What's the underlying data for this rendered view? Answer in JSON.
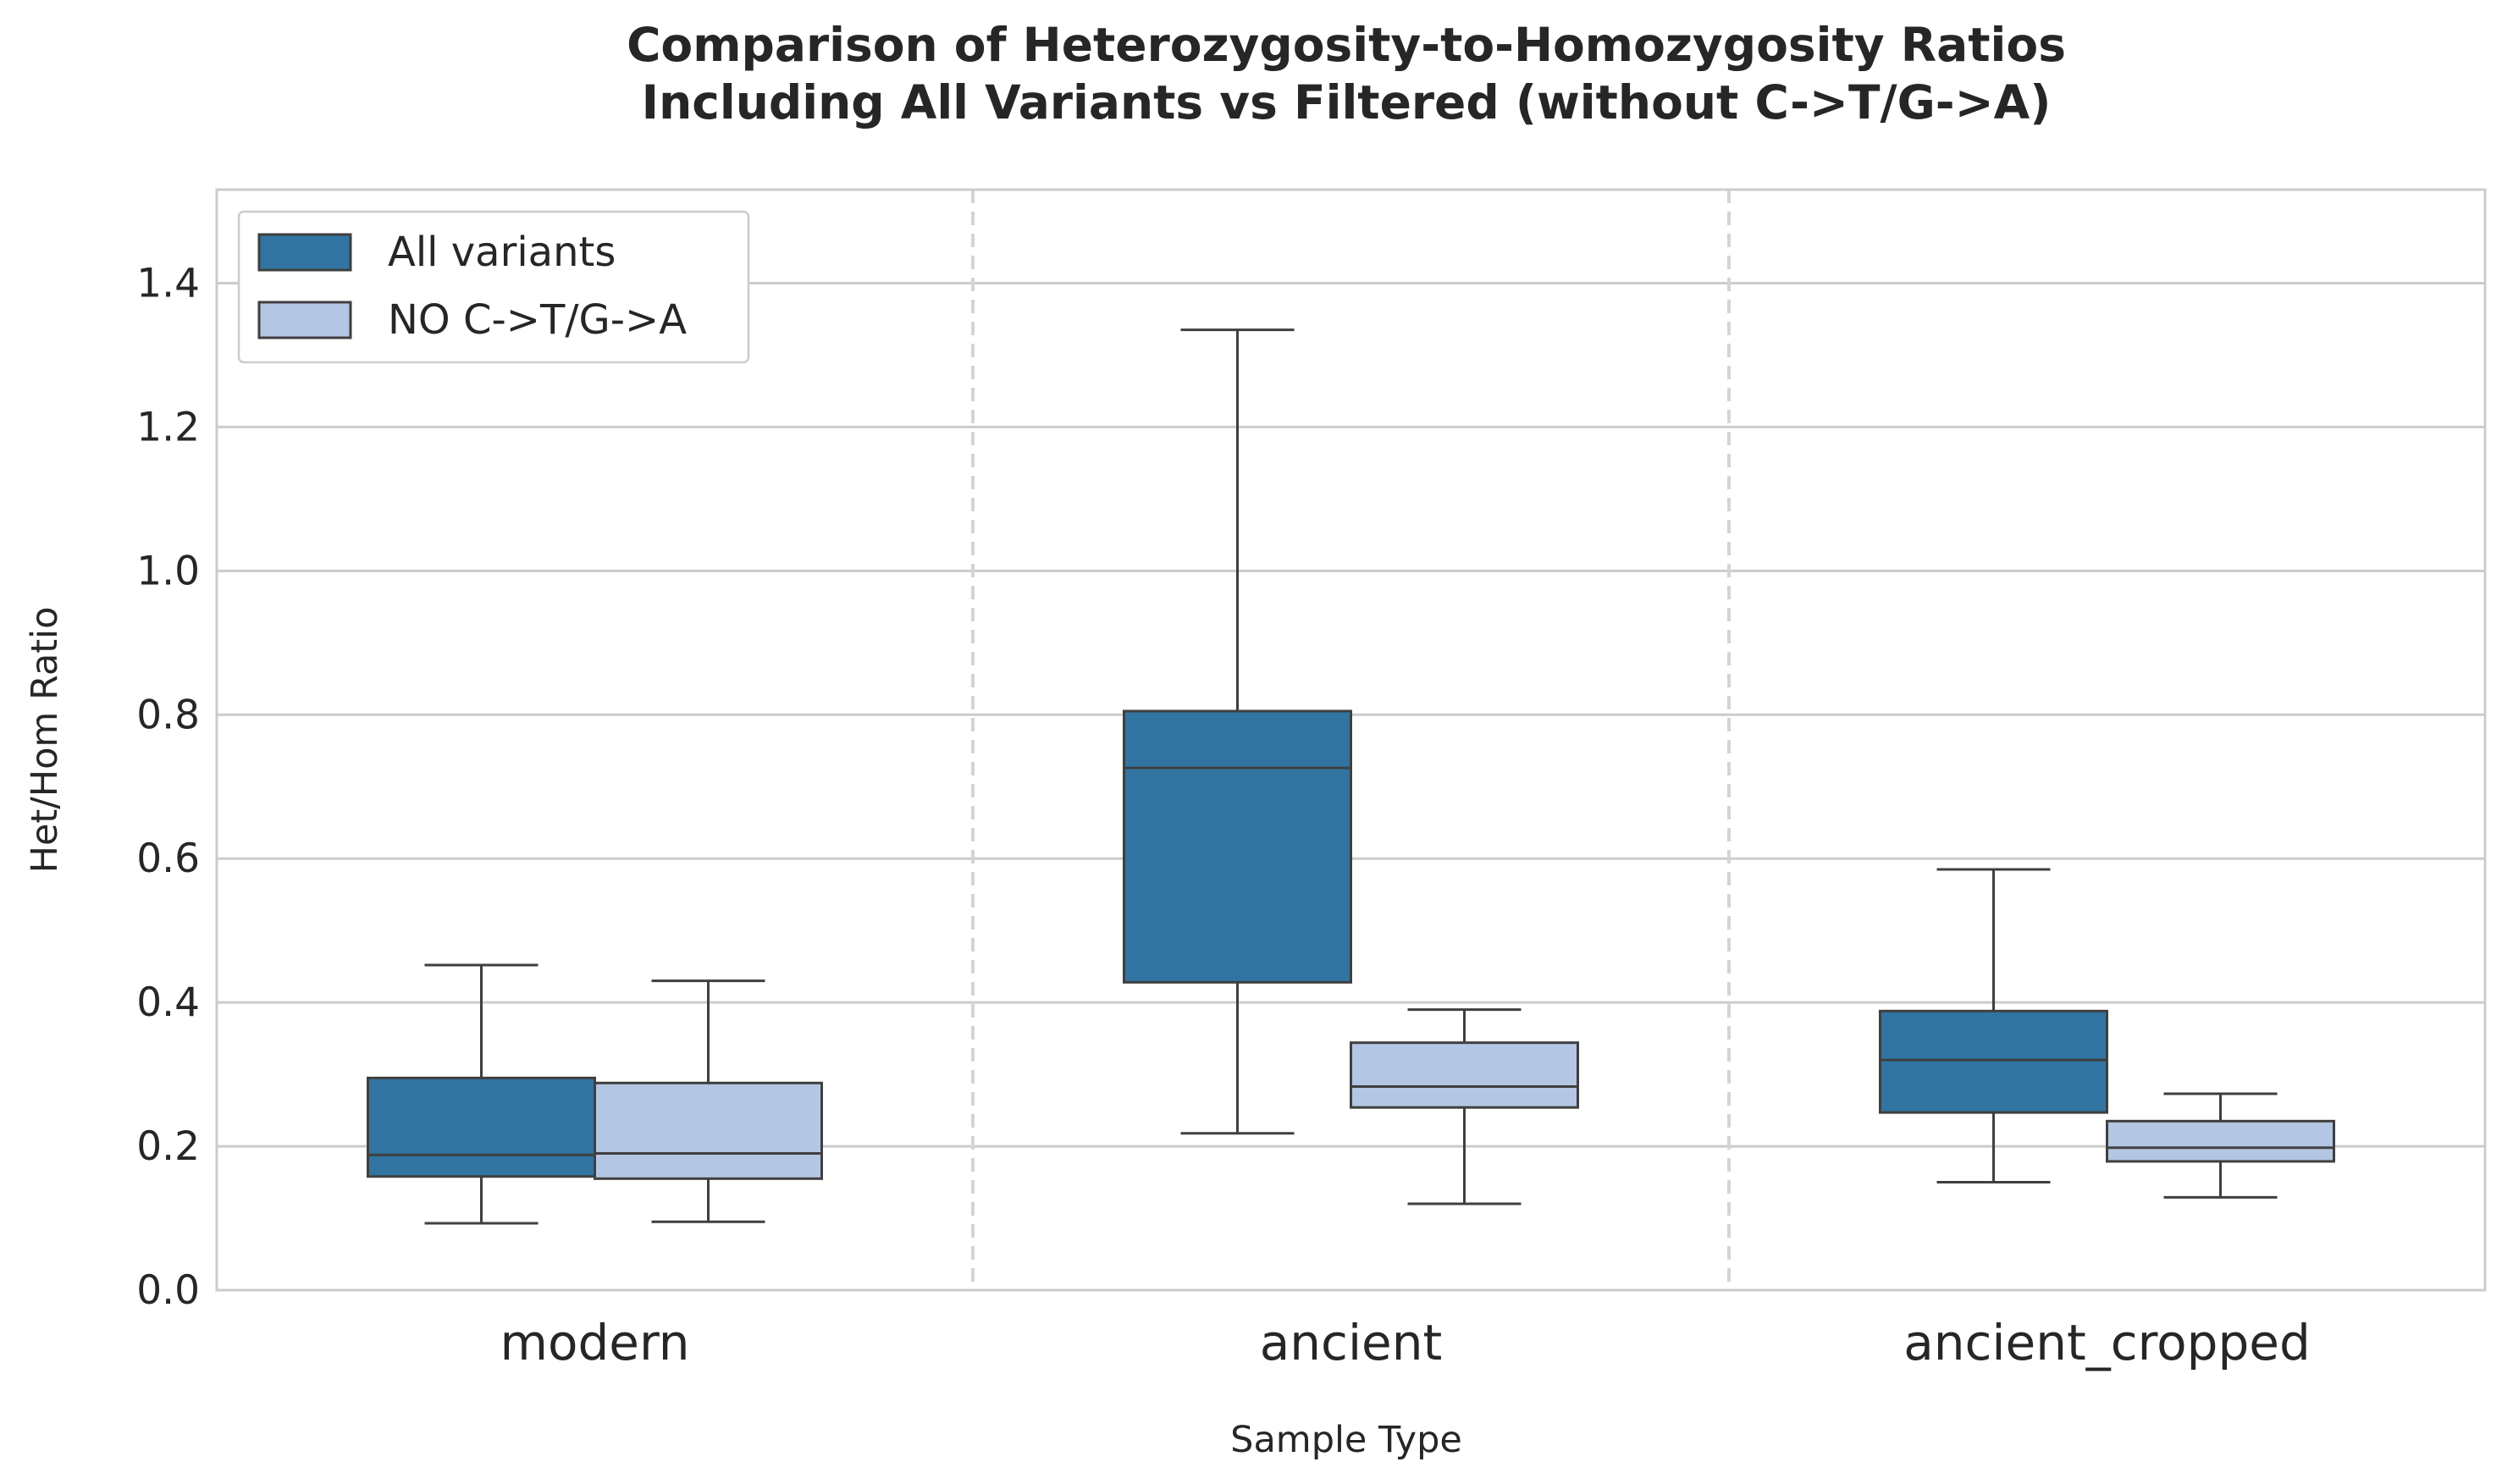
{
  "chart_data": {
    "type": "box",
    "title": "Comparison of Heterozygosity-to-Homozygosity Ratios",
    "subtitle": "Including All Variants vs Filtered (without C->T/G->A)",
    "xlabel": "Sample Type",
    "ylabel": "Het/Hom Ratio",
    "ylim": [
      0,
      1.53
    ],
    "yticks": [
      "0.0",
      "0.2",
      "0.4",
      "0.6",
      "0.8",
      "1.0",
      "1.2",
      "1.4"
    ],
    "grid": true,
    "legend_position": "top-left",
    "categories": [
      "modern",
      "ancient",
      "ancient_cropped"
    ],
    "series": [
      {
        "name": "All variants",
        "color": "#3274a1",
        "boxes": [
          {
            "whisker_low": 0.093,
            "q1": 0.158,
            "median": 0.188,
            "q3": 0.295,
            "whisker_high": 0.452
          },
          {
            "whisker_low": 0.218,
            "q1": 0.428,
            "median": 0.726,
            "q3": 0.805,
            "whisker_high": 1.335
          },
          {
            "whisker_low": 0.15,
            "q1": 0.247,
            "median": 0.32,
            "q3": 0.388,
            "whisker_high": 0.585
          }
        ]
      },
      {
        "name": "NO C->T/G->A",
        "color": "#b3c6e3",
        "boxes": [
          {
            "whisker_low": 0.095,
            "q1": 0.155,
            "median": 0.19,
            "q3": 0.288,
            "whisker_high": 0.43
          },
          {
            "whisker_low": 0.12,
            "q1": 0.254,
            "median": 0.283,
            "q3": 0.344,
            "whisker_high": 0.39
          },
          {
            "whisker_low": 0.129,
            "q1": 0.179,
            "median": 0.198,
            "q3": 0.235,
            "whisker_high": 0.273
          }
        ]
      }
    ]
  }
}
